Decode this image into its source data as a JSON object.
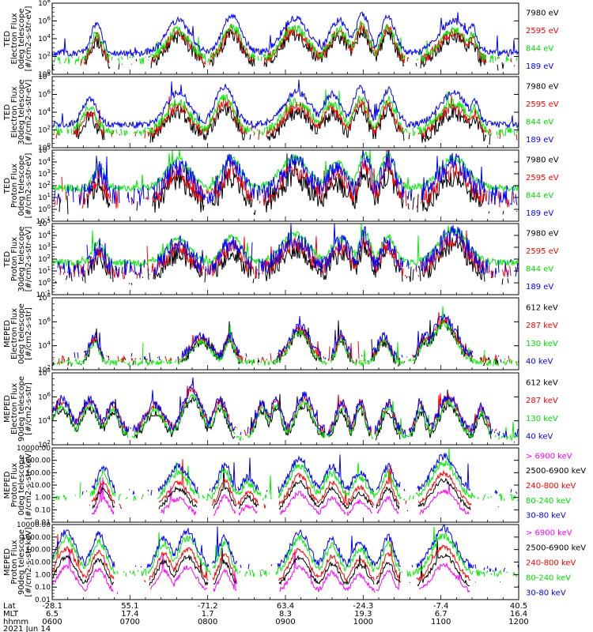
{
  "chart_data": [
    {
      "type": "line",
      "ylabel_lines": [
        "TED",
        "Electron Flux",
        "0deg telescope",
        "[#/cm2-s-str-eV]"
      ],
      "yscale": "log",
      "ylim_exp": [
        0,
        8
      ],
      "ytick_labels": [
        "10^0",
        "10^2",
        "10^4",
        "10^6",
        "10^8"
      ],
      "series": [
        {
          "name": "7980 eV",
          "color": "#000000",
          "base": 1.2,
          "noise": 0.8,
          "gap": 0.8,
          "peak": 1.0
        },
        {
          "name": "2595 eV",
          "color": "#ff0000",
          "base": 1.4,
          "noise": 0.6,
          "gap": 0.7,
          "peak": 1.08
        },
        {
          "name": "844 eV",
          "color": "#00ee00",
          "base": 1.6,
          "noise": 0.5,
          "gap": 0.4,
          "peak": 1.12
        },
        {
          "name": "189 eV",
          "color": "#0000ff",
          "base": 2.4,
          "noise": 0.4,
          "gap": 0.0,
          "peak": 1.22
        }
      ],
      "events": [
        [
          0.095,
          0.012,
          2.6
        ],
        [
          0.27,
          0.025,
          3.0
        ],
        [
          0.385,
          0.02,
          3.4
        ],
        [
          0.52,
          0.028,
          3.2
        ],
        [
          0.615,
          0.02,
          3.0
        ],
        [
          0.665,
          0.015,
          3.6
        ],
        [
          0.72,
          0.015,
          3.4
        ],
        [
          0.86,
          0.03,
          3.0
        ],
        [
          0.9,
          0.01,
          2.6
        ]
      ]
    },
    {
      "type": "line",
      "ylabel_lines": [
        "TED",
        "Electron Flux",
        "30deg telescope",
        "[#/cm2-s-str-eV]"
      ],
      "yscale": "log",
      "ylim_exp": [
        0,
        8
      ],
      "ytick_labels": [
        "10^0",
        "10^2",
        "10^4",
        "10^6",
        "10^8"
      ],
      "series": [
        {
          "name": "7980 eV",
          "color": "#000000",
          "base": 1.0,
          "noise": 0.8,
          "gap": 0.8,
          "peak": 1.0
        },
        {
          "name": "2595 eV",
          "color": "#ff0000",
          "base": 1.4,
          "noise": 0.6,
          "gap": 0.6,
          "peak": 1.08
        },
        {
          "name": "844 eV",
          "color": "#00ee00",
          "base": 1.8,
          "noise": 0.5,
          "gap": 0.3,
          "peak": 1.12
        },
        {
          "name": "189 eV",
          "color": "#0000ff",
          "base": 2.6,
          "noise": 0.4,
          "gap": 0.0,
          "peak": 1.22
        }
      ],
      "events": [
        [
          0.08,
          0.015,
          2.4
        ],
        [
          0.27,
          0.025,
          3.0
        ],
        [
          0.37,
          0.02,
          3.5
        ],
        [
          0.525,
          0.028,
          3.0
        ],
        [
          0.6,
          0.02,
          2.8
        ],
        [
          0.66,
          0.015,
          3.4
        ],
        [
          0.72,
          0.015,
          3.2
        ],
        [
          0.86,
          0.03,
          2.9
        ],
        [
          0.905,
          0.01,
          2.4
        ]
      ]
    },
    {
      "type": "line",
      "ylabel_lines": [
        "TED",
        "Proton Flux",
        "0deg telescope",
        "[#/cm2-s-str-eV]"
      ],
      "yscale": "log",
      "ylim_exp": [
        -1,
        5
      ],
      "ytick_labels": [
        "10^-1",
        "10^0",
        "10^1",
        "10^2",
        "10^3",
        "10^4",
        "10^5"
      ],
      "series": [
        {
          "name": "7980 eV",
          "color": "#000000",
          "base": 0.3,
          "noise": 0.9,
          "gap": 0.7,
          "peak": 1.0
        },
        {
          "name": "2595 eV",
          "color": "#ff0000",
          "base": 0.8,
          "noise": 0.8,
          "gap": 0.5,
          "peak": 1.06
        },
        {
          "name": "844 eV",
          "color": "#00ee00",
          "base": 1.8,
          "noise": 0.3,
          "gap": 0.0,
          "peak": 1.08
        },
        {
          "name": "189 eV",
          "color": "#0000ff",
          "base": 1.2,
          "noise": 0.9,
          "gap": 0.3,
          "peak": 1.16
        }
      ],
      "events": [
        [
          0.1,
          0.012,
          1.8
        ],
        [
          0.27,
          0.025,
          2.2
        ],
        [
          0.385,
          0.02,
          2.4
        ],
        [
          0.52,
          0.03,
          2.4
        ],
        [
          0.61,
          0.02,
          2.0
        ],
        [
          0.67,
          0.012,
          2.8
        ],
        [
          0.72,
          0.015,
          2.6
        ],
        [
          0.86,
          0.03,
          2.4
        ]
      ]
    },
    {
      "type": "line",
      "ylabel_lines": [
        "TED",
        "Proton Flux",
        "30deg telescope",
        "[#/cm2-s-str-eV]"
      ],
      "yscale": "log",
      "ylim_exp": [
        -1,
        5
      ],
      "ytick_labels": [
        "10^-1",
        "10^0",
        "10^1",
        "10^2",
        "10^3",
        "10^4",
        "10^5"
      ],
      "series": [
        {
          "name": "7980 eV",
          "color": "#000000",
          "base": 0.6,
          "noise": 0.8,
          "gap": 0.6,
          "peak": 1.0
        },
        {
          "name": "2595 eV",
          "color": "#ff0000",
          "base": 1.0,
          "noise": 0.7,
          "gap": 0.4,
          "peak": 1.05
        },
        {
          "name": "844 eV",
          "color": "#00ee00",
          "base": 1.7,
          "noise": 0.3,
          "gap": 0.0,
          "peak": 1.08
        },
        {
          "name": "189 eV",
          "color": "#0000ff",
          "base": 1.2,
          "noise": 0.8,
          "gap": 0.4,
          "peak": 1.16
        }
      ],
      "events": [
        [
          0.1,
          0.012,
          1.6
        ],
        [
          0.27,
          0.025,
          1.8
        ],
        [
          0.385,
          0.02,
          2.0
        ],
        [
          0.52,
          0.03,
          2.2
        ],
        [
          0.62,
          0.02,
          1.8
        ],
        [
          0.67,
          0.012,
          2.4
        ],
        [
          0.72,
          0.015,
          2.0
        ],
        [
          0.86,
          0.03,
          2.6
        ]
      ]
    },
    {
      "type": "line",
      "ylabel_lines": [
        "MEPED",
        "Electron Flux",
        "0deg telescope",
        "[#/cm2-s-str]"
      ],
      "yscale": "log",
      "ylim_exp": [
        1,
        8
      ],
      "ytick_labels": [
        "10^2",
        "10^4",
        "10^6",
        "10^8"
      ],
      "series": [
        {
          "name": "612 keV",
          "color": "#000000",
          "base": 1.8,
          "noise": 0.5,
          "gap": 0.6,
          "peak": 0.95
        },
        {
          "name": "287 keV",
          "color": "#ff0000",
          "base": 2.0,
          "noise": 0.4,
          "gap": 0.5,
          "peak": 1.0
        },
        {
          "name": "130 keV",
          "color": "#00ee00",
          "base": 1.7,
          "noise": 0.3,
          "gap": 0.2,
          "peak": 0.98
        },
        {
          "name": "40 keV",
          "color": "#0000ff",
          "base": 2.2,
          "noise": 0.5,
          "gap": 0.7,
          "peak": 1.02
        }
      ],
      "events": [
        [
          0.09,
          0.01,
          2.0
        ],
        [
          0.32,
          0.02,
          2.0
        ],
        [
          0.38,
          0.01,
          2.2
        ],
        [
          0.53,
          0.02,
          3.0
        ],
        [
          0.62,
          0.01,
          2.2
        ],
        [
          0.71,
          0.012,
          2.0
        ],
        [
          0.8,
          0.012,
          2.2
        ],
        [
          0.84,
          0.025,
          3.8
        ]
      ]
    },
    {
      "type": "line",
      "ylabel_lines": [
        "MEPED",
        "Electron Flux",
        "90deg telescope",
        "[#/cm2-s-str]"
      ],
      "yscale": "log",
      "ylim_exp": [
        1,
        8
      ],
      "ytick_labels": [
        "10^2",
        "10^4",
        "10^6",
        "10^8"
      ],
      "series": [
        {
          "name": "612 keV",
          "color": "#000000",
          "base": 1.6,
          "noise": 0.4,
          "gap": 0.7,
          "peak": 0.95
        },
        {
          "name": "287 keV",
          "color": "#ff0000",
          "base": 2.2,
          "noise": 0.4,
          "gap": 0.6,
          "peak": 1.0
        },
        {
          "name": "130 keV",
          "color": "#00ee00",
          "base": 1.7,
          "noise": 0.3,
          "gap": 0.3,
          "peak": 1.02
        },
        {
          "name": "40 keV",
          "color": "#0000ff",
          "base": 2.2,
          "noise": 0.5,
          "gap": 0.5,
          "peak": 1.05
        }
      ],
      "events": [
        [
          0.02,
          0.02,
          3.0
        ],
        [
          0.08,
          0.018,
          3.0
        ],
        [
          0.13,
          0.014,
          2.6
        ],
        [
          0.22,
          0.02,
          2.6
        ],
        [
          0.3,
          0.02,
          4.0
        ],
        [
          0.36,
          0.014,
          3.0
        ],
        [
          0.45,
          0.012,
          2.8
        ],
        [
          0.48,
          0.012,
          3.0
        ],
        [
          0.54,
          0.018,
          3.4
        ],
        [
          0.62,
          0.012,
          2.8
        ],
        [
          0.66,
          0.01,
          3.0
        ],
        [
          0.72,
          0.012,
          2.8
        ],
        [
          0.79,
          0.01,
          2.6
        ],
        [
          0.85,
          0.02,
          3.4
        ],
        [
          0.92,
          0.01,
          2.4
        ]
      ]
    },
    {
      "type": "line",
      "ylabel_lines": [
        "MEPED",
        "Proton Flux",
        "0deg telescope",
        "[#/cm2-s-str-keV]"
      ],
      "yscale": "log",
      "ylim_exp": [
        -2,
        4
      ],
      "ytick_labels": [
        "0.01",
        "0.10",
        "1.00",
        "10.00",
        "100.00",
        "1000.00",
        "10000.00"
      ],
      "series": [
        {
          "name": "> 6900 keV",
          "color": "#ff00ff",
          "base": -1.5,
          "noise": 0.2,
          "gap": 0.95,
          "peak": 0.7
        },
        {
          "name": "2500-6900 keV",
          "color": "#000000",
          "base": -1.0,
          "noise": 0.2,
          "gap": 0.9,
          "peak": 0.85
        },
        {
          "name": "240-800 keV",
          "color": "#ff0000",
          "base": -0.7,
          "noise": 0.2,
          "gap": 0.85,
          "peak": 0.95
        },
        {
          "name": "80-240 keV",
          "color": "#00ee00",
          "base": 0.0,
          "noise": 0.3,
          "gap": 0.4,
          "peak": 1.0
        },
        {
          "name": "30-80 keV",
          "color": "#0000ff",
          "base": 0.4,
          "noise": 0.3,
          "gap": 0.7,
          "peak": 1.05
        }
      ],
      "events": [
        [
          0.11,
          0.012,
          2.0
        ],
        [
          0.27,
          0.02,
          2.0
        ],
        [
          0.37,
          0.012,
          2.2
        ],
        [
          0.42,
          0.012,
          1.2
        ],
        [
          0.53,
          0.02,
          2.6
        ],
        [
          0.6,
          0.015,
          2.0
        ],
        [
          0.66,
          0.015,
          1.6
        ],
        [
          0.72,
          0.012,
          2.0
        ],
        [
          0.84,
          0.025,
          2.8
        ]
      ]
    },
    {
      "type": "line",
      "ylabel_lines": [
        "MEPED",
        "Proton Flux",
        "90deg telescope",
        "[#/cm2-s-str-keV]"
      ],
      "yscale": "log",
      "ylim_exp": [
        -2,
        4
      ],
      "ytick_labels": [
        "0.01",
        "0.10",
        "1.00",
        "10.00",
        "100.00",
        "1000.00",
        "10000.00"
      ],
      "series": [
        {
          "name": "> 6900 keV",
          "color": "#ff00ff",
          "base": -1.5,
          "noise": 0.2,
          "gap": 0.95,
          "peak": 0.75
        },
        {
          "name": "2500-6900 keV",
          "color": "#000000",
          "base": -1.0,
          "noise": 0.2,
          "gap": 0.9,
          "peak": 0.85
        },
        {
          "name": "240-800 keV",
          "color": "#ff0000",
          "base": -0.6,
          "noise": 0.2,
          "gap": 0.8,
          "peak": 0.95
        },
        {
          "name": "80-240 keV",
          "color": "#00ee00",
          "base": 0.1,
          "noise": 0.3,
          "gap": 0.4,
          "peak": 1.0
        },
        {
          "name": "30-80 keV",
          "color": "#0000ff",
          "base": 0.5,
          "noise": 0.3,
          "gap": 0.6,
          "peak": 1.05
        }
      ],
      "events": [
        [
          0.03,
          0.02,
          2.8
        ],
        [
          0.1,
          0.015,
          2.6
        ],
        [
          0.24,
          0.015,
          2.4
        ],
        [
          0.29,
          0.02,
          2.8
        ],
        [
          0.37,
          0.012,
          2.4
        ],
        [
          0.53,
          0.02,
          2.8
        ],
        [
          0.6,
          0.015,
          2.2
        ],
        [
          0.66,
          0.015,
          2.0
        ],
        [
          0.72,
          0.012,
          2.4
        ],
        [
          0.84,
          0.025,
          3.0
        ]
      ]
    }
  ],
  "x_axis": {
    "row_labels": [
      "Lat",
      "MLT",
      "hhmm"
    ],
    "ticks": [
      {
        "pos": 0.0,
        "lat": "-28.1",
        "mlt": "6.5",
        "hhmm": "0600"
      },
      {
        "pos": 0.2,
        "lat": "55.1",
        "mlt": "17.4",
        "hhmm": "0700"
      },
      {
        "pos": 0.4,
        "lat": "-71.2",
        "mlt": "1.7",
        "hhmm": "0800"
      },
      {
        "pos": 0.6,
        "lat": "63.4",
        "mlt": "8.3",
        "hhmm": "0900"
      },
      {
        "pos": 0.8,
        "lat": "-24.3",
        "mlt": "19.3",
        "hhmm": "1000"
      },
      {
        "pos": 1.0,
        "lat": "-7.4",
        "mlt": "6.7",
        "hhmm": "1100"
      },
      {
        "pos": 1.2,
        "lat": "40.5",
        "mlt": "16.4",
        "hhmm": "1200"
      }
    ],
    "date": "2021 Jun 14"
  }
}
